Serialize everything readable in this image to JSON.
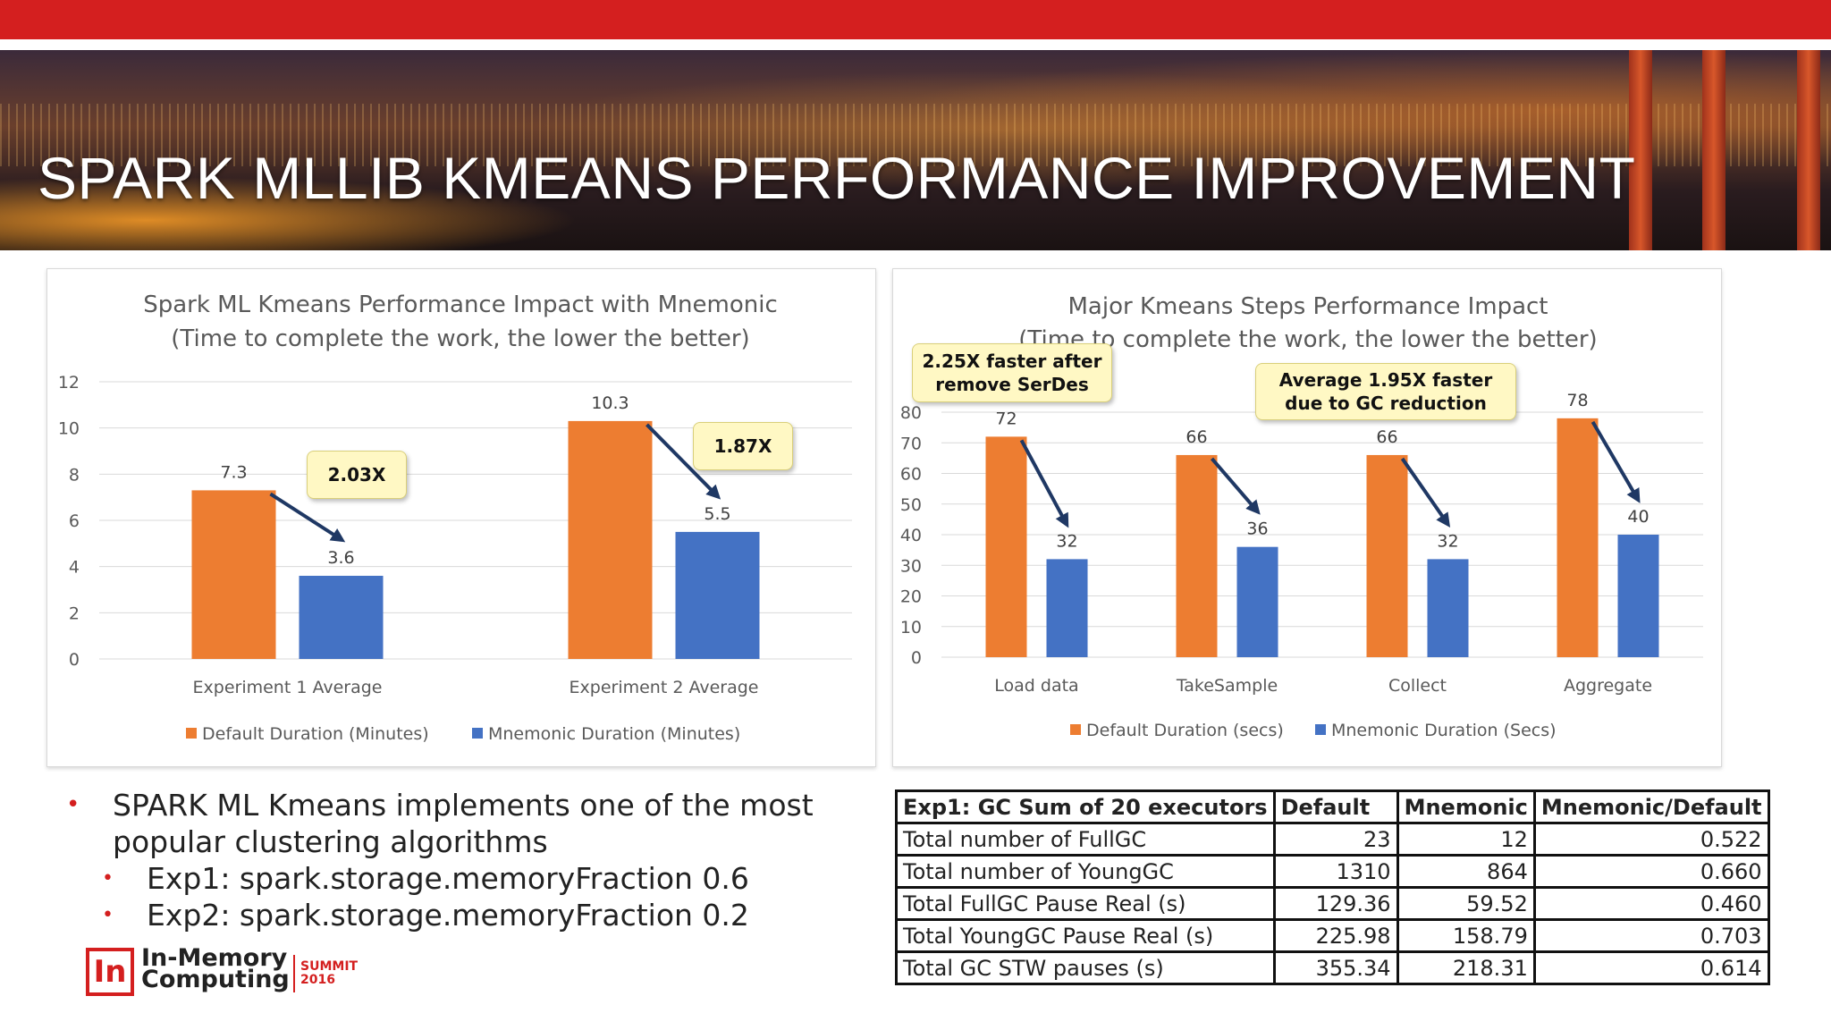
{
  "slide": {
    "title": "SPARK MLLIB KMEANS PERFORMANCE IMPROVEMENT"
  },
  "chart_data": [
    {
      "type": "bar",
      "title": "Spark ML Kmeans Performance Impact with Mnemonic",
      "subtitle": "(Time to complete the work, the lower the better)",
      "categories": [
        "Experiment 1 Average",
        "Experiment 2 Average"
      ],
      "series": [
        {
          "name": "Default Duration (Minutes)",
          "values": [
            7.3,
            10.3
          ],
          "color": "#ed7d31"
        },
        {
          "name": "Mnemonic Duration (Minutes)",
          "values": [
            3.6,
            5.5
          ],
          "color": "#4472c4"
        }
      ],
      "ylim": [
        0,
        12
      ],
      "yticks": [
        0,
        2,
        4,
        6,
        8,
        10,
        12
      ],
      "grid": true,
      "legend": "bottom",
      "annotations": [
        "2.03X",
        "1.87X"
      ]
    },
    {
      "type": "bar",
      "title": "Major Kmeans Steps Performance Impact",
      "subtitle": "(Time to complete the work, the lower the better)",
      "categories": [
        "Load data",
        "TakeSample",
        "Collect",
        "Aggregate"
      ],
      "series": [
        {
          "name": "Default Duration (secs)",
          "values": [
            72,
            66,
            66,
            78
          ],
          "color": "#ed7d31"
        },
        {
          "name": "Mnemonic Duration (Secs)",
          "values": [
            32,
            36,
            32,
            40
          ],
          "color": "#4472c4"
        }
      ],
      "ylim": [
        0,
        80
      ],
      "yticks": [
        0,
        10,
        20,
        30,
        40,
        50,
        60,
        70,
        80
      ],
      "grid": true,
      "legend": "bottom",
      "annotations": [
        "2.25X faster after remove SerDes",
        "Average 1.95X faster due to GC reduction"
      ]
    }
  ],
  "callouts": {
    "c1": "2.03X",
    "c2": "1.87X",
    "c3_line1": "2.25X faster after",
    "c3_line2": "remove SerDes",
    "c4_line1": "Average 1.95X faster",
    "c4_line2": "due to GC reduction"
  },
  "bullets": {
    "main": "SPARK ML Kmeans implements one of the most popular clustering algorithms",
    "sub1": "Exp1: spark.storage.memoryFraction 0.6",
    "sub2": "Exp2: spark.storage.memoryFraction 0.2"
  },
  "logo": {
    "line1": "In-Memory",
    "line2": "Computing",
    "summit": "SUMMIT",
    "year": "2016",
    "mark": "In"
  },
  "table": {
    "headers": [
      "Exp1: GC Sum of 20 executors",
      "Default",
      "Mnemonic",
      "Mnemonic/Default"
    ],
    "rows": [
      [
        "Total number of FullGC",
        "23",
        "12",
        "0.522"
      ],
      [
        "Total number of YoungGC",
        "1310",
        "864",
        "0.660"
      ],
      [
        "Total FullGC Pause Real (s)",
        "129.36",
        "59.52",
        "0.460"
      ],
      [
        "Total YoungGC Pause Real (s)",
        "225.98",
        "158.79",
        "0.703"
      ],
      [
        "Total GC STW pauses (s)",
        "355.34",
        "218.31",
        "0.614"
      ]
    ]
  }
}
